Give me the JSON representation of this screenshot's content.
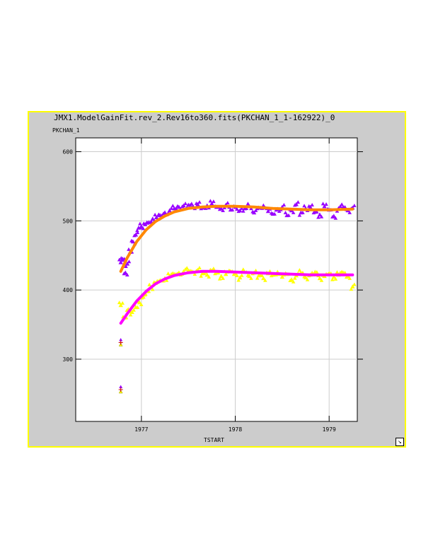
{
  "chart_data": {
    "type": "scatter",
    "title": "JMX1.ModelGainFit.rev_2.Rev16to360.fits(PKCHAN_1_1-162922)_0",
    "ylabel": "PKCHAN_1",
    "xlabel": "TSTART",
    "xlim": [
      1976.3,
      1979.3
    ],
    "ylim": [
      210,
      620
    ],
    "xticks": [
      1977,
      1978,
      1979
    ],
    "yticks": [
      300,
      400,
      500,
      600
    ],
    "grid": true,
    "colors": {
      "frame_bg": "#cccccc",
      "frame_border": "#ffff00",
      "plot_bg": "#ffffff",
      "gridline": "#cccccc",
      "upper_points": "#9900ff",
      "upper_fit": "#ff8800",
      "lower_points": "#ffff00",
      "lower_fit": "#ff00ff",
      "outlier_marker": "#cc0000"
    },
    "series": [
      {
        "kind": "scatter-triangle",
        "color": "#9900ff",
        "x": [
          1976.78,
          1976.8,
          1976.83,
          1976.85,
          1976.88,
          1976.91,
          1976.94,
          1976.97,
          1977.0,
          1977.04,
          1977.08,
          1977.12,
          1977.16,
          1977.2,
          1977.25,
          1977.3,
          1977.35,
          1977.4,
          1977.45,
          1977.5,
          1977.55,
          1977.6,
          1977.65,
          1977.7,
          1977.75,
          1977.8,
          1977.85,
          1977.9,
          1977.95,
          1978.0,
          1978.05,
          1978.1,
          1978.15,
          1978.2,
          1978.25,
          1978.3,
          1978.35,
          1978.4,
          1978.45,
          1978.5,
          1978.55,
          1978.6,
          1978.65,
          1978.7,
          1978.75,
          1978.8,
          1978.85,
          1978.9,
          1978.95,
          1979.0,
          1979.05,
          1979.1,
          1979.15,
          1979.2,
          1979.25
        ],
        "y": [
          440,
          445,
          425,
          438,
          455,
          470,
          480,
          490,
          492,
          495,
          498,
          503,
          505,
          508,
          512,
          515,
          518,
          520,
          522,
          523,
          521,
          524,
          519,
          522,
          525,
          520,
          518,
          523,
          516,
          520,
          515,
          518,
          521,
          512,
          519,
          522,
          514,
          510,
          517,
          520,
          508,
          515,
          524,
          512,
          518,
          520,
          513,
          509,
          521,
          516,
          507,
          518,
          520,
          515,
          519
        ]
      },
      {
        "kind": "fit-line",
        "color": "#ff8800",
        "x": [
          1976.78,
          1976.85,
          1976.95,
          1977.05,
          1977.15,
          1977.25,
          1977.35,
          1977.5,
          1977.65,
          1977.8,
          1978.0,
          1978.2,
          1978.4,
          1978.6,
          1978.8,
          1979.0,
          1979.25
        ],
        "y": [
          427,
          447,
          470,
          487,
          499,
          507,
          513,
          518,
          520,
          521,
          521,
          520,
          518,
          517,
          516,
          516,
          517
        ]
      },
      {
        "kind": "scatter-triangle",
        "color": "#ffff00",
        "x": [
          1976.78,
          1976.82,
          1976.86,
          1976.9,
          1976.94,
          1976.98,
          1977.02,
          1977.06,
          1977.1,
          1977.15,
          1977.2,
          1977.25,
          1977.3,
          1977.35,
          1977.4,
          1977.45,
          1977.5,
          1977.55,
          1977.6,
          1977.65,
          1977.7,
          1977.75,
          1977.8,
          1977.85,
          1977.9,
          1977.95,
          1978.0,
          1978.05,
          1978.1,
          1978.15,
          1978.2,
          1978.25,
          1978.3,
          1978.35,
          1978.4,
          1978.45,
          1978.5,
          1978.55,
          1978.6,
          1978.65,
          1978.7,
          1978.75,
          1978.8,
          1978.85,
          1978.9,
          1978.95,
          1979.0,
          1979.05,
          1979.1,
          1979.15,
          1979.2,
          1979.25
        ],
        "y": [
          378,
          360,
          372,
          368,
          375,
          382,
          390,
          398,
          404,
          410,
          414,
          417,
          420,
          423,
          425,
          427,
          428,
          426,
          429,
          424,
          422,
          428,
          425,
          420,
          423,
          427,
          424,
          418,
          426,
          420,
          425,
          421,
          417,
          424,
          422,
          426,
          419,
          423,
          415,
          421,
          425,
          418,
          422,
          426,
          417,
          420,
          424,
          419,
          422,
          425,
          420,
          405
        ]
      },
      {
        "kind": "fit-line",
        "color": "#ff00ff",
        "x": [
          1976.78,
          1976.85,
          1976.95,
          1977.05,
          1977.15,
          1977.25,
          1977.35,
          1977.5,
          1977.65,
          1977.8,
          1978.0,
          1978.2,
          1978.4,
          1978.6,
          1978.8,
          1979.0,
          1979.25
        ],
        "y": [
          352,
          366,
          384,
          398,
          409,
          416,
          421,
          425,
          427,
          427,
          426,
          425,
          424,
          423,
          422,
          422,
          422
        ]
      },
      {
        "kind": "outlier-markers",
        "color": "#cc0000",
        "x": [
          1976.78,
          1976.78
        ],
        "y": [
          324,
          256
        ]
      }
    ]
  }
}
